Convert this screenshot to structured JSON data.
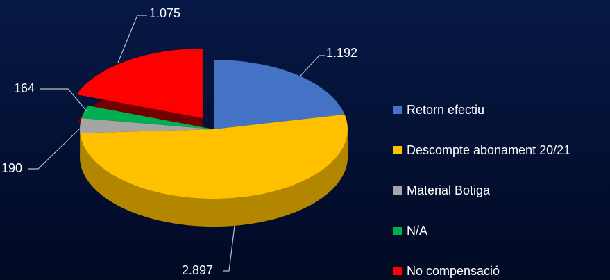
{
  "chart_data": {
    "type": "pie",
    "categories": [
      "Retorn efectiu",
      "Descompte abonament 20/21",
      "Material Botiga",
      "N/A",
      "No compensació"
    ],
    "values": [
      1192,
      2897,
      190,
      164,
      1075
    ],
    "value_labels": [
      "1.192",
      "2.897",
      "190",
      "164",
      "1.075"
    ],
    "colors": [
      "#4472c4",
      "#ffc000",
      "#a5a5a5",
      "#00b050",
      "#ff0000"
    ],
    "legend": "right"
  }
}
